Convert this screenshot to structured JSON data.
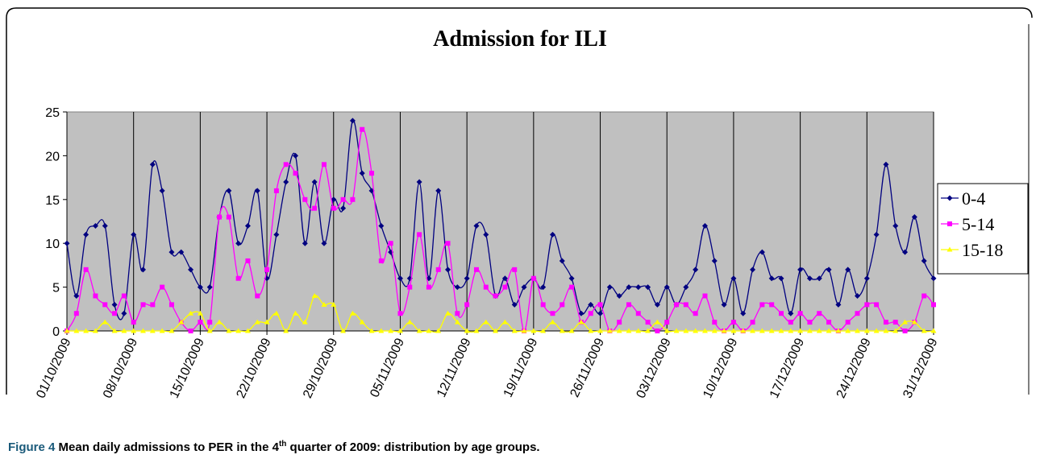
{
  "chart_data": {
    "type": "line",
    "title": "Admission for ILI",
    "categories": [
      "01/10/2009",
      null,
      null,
      null,
      null,
      null,
      null,
      "08/10/2009",
      null,
      null,
      null,
      null,
      null,
      null,
      "15/10/2009",
      null,
      null,
      null,
      null,
      null,
      null,
      "22/10/2009",
      null,
      null,
      null,
      null,
      null,
      null,
      "29/10/2009",
      null,
      null,
      null,
      null,
      null,
      null,
      "05/11/2009",
      null,
      null,
      null,
      null,
      null,
      null,
      "12/11/2009",
      null,
      null,
      null,
      null,
      null,
      null,
      "19/11/2009",
      null,
      null,
      null,
      null,
      null,
      null,
      "26/11/2009",
      null,
      null,
      null,
      null,
      null,
      null,
      "03/12/2009",
      null,
      null,
      null,
      null,
      null,
      null,
      "10/12/2009",
      null,
      null,
      null,
      null,
      null,
      null,
      "17/12/2009",
      null,
      null,
      null,
      null,
      null,
      null,
      "24/12/2009",
      null,
      null,
      null,
      null,
      null,
      null,
      "31/12/2009"
    ],
    "series": [
      {
        "name": "0-4",
        "color": "#000080",
        "marker": "diamond",
        "values": [
          10,
          4,
          11,
          12,
          12,
          3,
          2,
          11,
          7,
          19,
          16,
          9,
          9,
          7,
          5,
          5,
          13,
          16,
          10,
          12,
          16,
          6,
          11,
          17,
          20,
          10,
          17,
          10,
          15,
          14,
          24,
          18,
          16,
          12,
          9,
          6,
          6,
          17,
          6,
          16,
          7,
          5,
          6,
          12,
          11,
          4,
          6,
          3,
          5,
          6,
          5,
          11,
          8,
          6,
          2,
          3,
          2,
          5,
          4,
          5,
          5,
          5,
          3,
          5,
          3,
          5,
          7,
          12,
          8,
          3,
          6,
          2,
          7,
          9,
          6,
          6,
          2,
          7,
          6,
          6,
          7,
          3,
          7,
          4,
          6,
          11,
          19,
          12,
          9,
          13,
          8,
          6
        ]
      },
      {
        "name": "5-14",
        "color": "#ff00ff",
        "marker": "square",
        "values": [
          0,
          2,
          7,
          4,
          3,
          2,
          4,
          1,
          3,
          3,
          5,
          3,
          1,
          0,
          1,
          1,
          13,
          13,
          6,
          8,
          4,
          7,
          16,
          19,
          18,
          15,
          14,
          19,
          14,
          15,
          15,
          23,
          18,
          8,
          10,
          2,
          5,
          11,
          5,
          7,
          10,
          2,
          3,
          7,
          5,
          4,
          5,
          7,
          0,
          6,
          3,
          2,
          3,
          5,
          1,
          2,
          3,
          0,
          1,
          3,
          2,
          1,
          0,
          1,
          3,
          3,
          2,
          4,
          1,
          0,
          1,
          0,
          1,
          3,
          3,
          2,
          1,
          2,
          1,
          2,
          1,
          0,
          1,
          2,
          3,
          3,
          1,
          1,
          0,
          1,
          4,
          3
        ]
      },
      {
        "name": "15-18",
        "color": "#ffff00",
        "marker": "triangle",
        "values": [
          0,
          0,
          0,
          0,
          1,
          0,
          0,
          0,
          0,
          0,
          0,
          0,
          1,
          2,
          2,
          0,
          1,
          0,
          0,
          0,
          1,
          1,
          2,
          0,
          2,
          1,
          4,
          3,
          3,
          0,
          2,
          1,
          0,
          0,
          0,
          0,
          1,
          0,
          0,
          0,
          2,
          1,
          0,
          0,
          1,
          0,
          1,
          0,
          0,
          0,
          0,
          1,
          0,
          0,
          1,
          0,
          0,
          0,
          0,
          0,
          0,
          0,
          1,
          0,
          0,
          0,
          0,
          0,
          0,
          0,
          0,
          0,
          0,
          0,
          0,
          0,
          0,
          0,
          0,
          0,
          0,
          0,
          0,
          0,
          0,
          0,
          0,
          0,
          1,
          1,
          0,
          0
        ]
      }
    ],
    "ylim": [
      0,
      25
    ],
    "yticks": [
      0,
      5,
      10,
      15,
      20,
      25
    ],
    "grid": "x",
    "plot_background": "#c0c0c0",
    "legend": "right"
  },
  "caption": {
    "label": "Figure 4",
    "text_before": "Mean daily admissions to PER in the 4",
    "superscript": "th",
    "text_after": " quarter of 2009: distribution by age groups."
  }
}
